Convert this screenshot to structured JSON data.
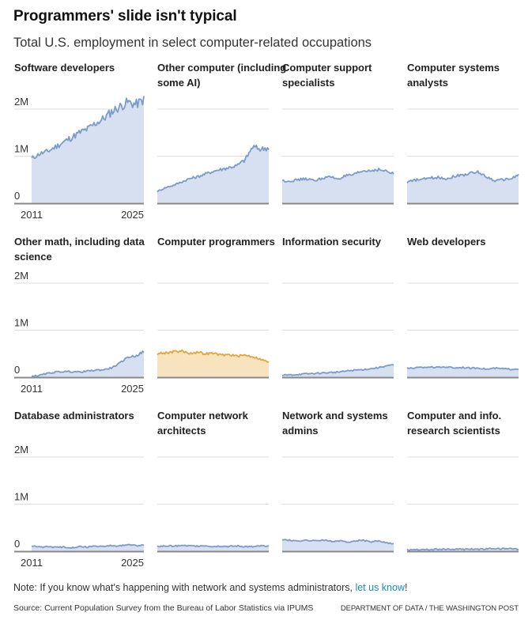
{
  "header": {
    "title": "Programmers' slide isn't typical",
    "subtitle": "Total U.S. employment in select computer-related occupations"
  },
  "footer": {
    "note_prefix": "Note: If you know what's happening with network and systems administrators, ",
    "note_link": "let us know",
    "note_suffix": "!",
    "source": "Source: Current Population Survey from the Bureau of Labor Statistics via IPUMS",
    "credit": "DEPARTMENT OF DATA / THE WASHINGTON POST"
  },
  "colors": {
    "line": "#7b9bcc",
    "fill": "#d6e0f0",
    "highlight_line": "#e3a63c",
    "highlight_fill": "#f7e3bd",
    "grid": "#dddddd",
    "baseline": "#888888"
  },
  "chart_data": {
    "type": "area",
    "title": "Programmers' slide isn't typical",
    "subtitle": "Total U.S. employment in select computer-related occupations",
    "layout": "small-multiples 3x4",
    "ylim": [
      0,
      2300000
    ],
    "y_ticks": [
      {
        "value": 0,
        "label": "0"
      },
      {
        "value": 1000000,
        "label": "1M"
      },
      {
        "value": 2000000,
        "label": "2M"
      }
    ],
    "x_ticks": [
      "2011",
      "2025"
    ],
    "x": [
      2011,
      2012,
      2013,
      2014,
      2015,
      2016,
      2017,
      2018,
      2019,
      2020,
      2021,
      2022,
      2023,
      2024,
      2025
    ],
    "grid": true,
    "series": [
      {
        "name": "Software developers",
        "highlight": false,
        "values": [
          950000,
          1050000,
          1100000,
          1200000,
          1300000,
          1400000,
          1500000,
          1580000,
          1700000,
          1800000,
          1950000,
          2050000,
          2150000,
          2100000,
          2200000
        ]
      },
      {
        "name": "Other computer (including some AI)",
        "highlight": false,
        "values": [
          250000,
          330000,
          380000,
          450000,
          520000,
          560000,
          620000,
          680000,
          720000,
          760000,
          800000,
          920000,
          1200000,
          1150000,
          1180000
        ]
      },
      {
        "name": "Computer support specialists",
        "highlight": false,
        "values": [
          480000,
          470000,
          500000,
          520000,
          480000,
          530000,
          560000,
          520000,
          580000,
          600000,
          680000,
          690000,
          720000,
          680000,
          620000
        ]
      },
      {
        "name": "Computer systems analysts",
        "highlight": false,
        "values": [
          450000,
          490000,
          510000,
          540000,
          550000,
          520000,
          580000,
          600000,
          640000,
          660000,
          560000,
          480000,
          500000,
          520000,
          600000
        ]
      },
      {
        "name": "Other math, including data science",
        "highlight": false,
        "values": [
          20000,
          40000,
          80000,
          110000,
          120000,
          120000,
          110000,
          130000,
          150000,
          160000,
          200000,
          300000,
          430000,
          450000,
          550000
        ]
      },
      {
        "name": "Computer programmers",
        "highlight": true,
        "values": [
          500000,
          520000,
          540000,
          560000,
          510000,
          530000,
          500000,
          510000,
          470000,
          480000,
          450000,
          470000,
          440000,
          380000,
          320000
        ]
      },
      {
        "name": "Information security",
        "highlight": false,
        "values": [
          40000,
          50000,
          60000,
          70000,
          80000,
          90000,
          100000,
          110000,
          130000,
          150000,
          160000,
          180000,
          200000,
          240000,
          260000
        ]
      },
      {
        "name": "Web developers",
        "highlight": false,
        "values": [
          190000,
          200000,
          210000,
          220000,
          210000,
          220000,
          200000,
          210000,
          190000,
          200000,
          170000,
          190000,
          180000,
          170000,
          180000
        ]
      },
      {
        "name": "Database administrators",
        "highlight": false,
        "values": [
          110000,
          90000,
          100000,
          80000,
          90000,
          80000,
          100000,
          90000,
          110000,
          100000,
          120000,
          110000,
          140000,
          120000,
          130000
        ]
      },
      {
        "name": "Computer network architects",
        "highlight": false,
        "values": [
          100000,
          110000,
          110000,
          120000,
          110000,
          110000,
          120000,
          100000,
          110000,
          100000,
          110000,
          100000,
          90000,
          110000,
          120000
        ]
      },
      {
        "name": "Network and systems admins",
        "highlight": false,
        "values": [
          250000,
          230000,
          220000,
          230000,
          220000,
          240000,
          210000,
          220000,
          200000,
          210000,
          240000,
          200000,
          220000,
          190000,
          150000
        ]
      },
      {
        "name": "Computer and info. research scientists",
        "highlight": false,
        "values": [
          30000,
          35000,
          40000,
          35000,
          40000,
          45000,
          40000,
          40000,
          45000,
          40000,
          50000,
          55000,
          50000,
          55000,
          45000
        ]
      }
    ]
  },
  "panels": [
    {
      "title": "Software developers",
      "show_axis": true
    },
    {
      "title": "Other computer (including some AI)",
      "show_axis": false
    },
    {
      "title": "Computer support specialists",
      "show_axis": false
    },
    {
      "title": "Computer systems analysts",
      "show_axis": false
    },
    {
      "title": "Other math, including data science",
      "show_axis": true
    },
    {
      "title": "Computer programmers",
      "show_axis": false
    },
    {
      "title": "Information security",
      "show_axis": false
    },
    {
      "title": "Web developers",
      "show_axis": false
    },
    {
      "title": "Database administrators",
      "show_axis": true
    },
    {
      "title": "Computer network architects",
      "show_axis": false
    },
    {
      "title": "Network and systems admins",
      "show_axis": false
    },
    {
      "title": "Computer and info. research scientists",
      "show_axis": false
    }
  ]
}
